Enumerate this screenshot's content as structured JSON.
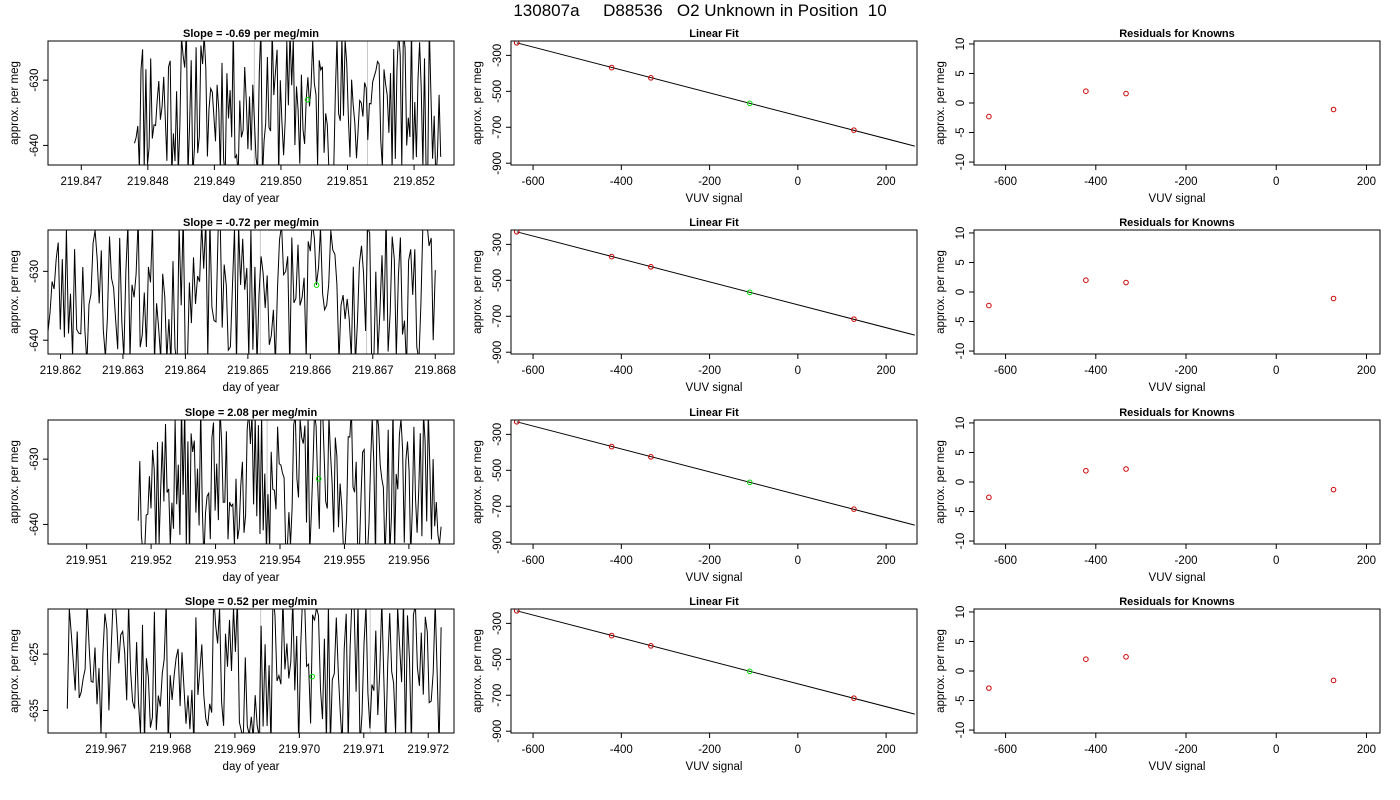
{
  "title": "130807a     D88536   O2 Unknown in Position  10",
  "chart_data": [
    {
      "type": "line",
      "title": "Slope =  -0.69  per meg/min",
      "xlabel": "day of year",
      "ylabel": "approx. per meg",
      "xlim": [
        219.8465,
        219.8526
      ],
      "ylim": [
        -643,
        -624
      ],
      "xticks": [
        "219.847",
        "219.848",
        "219.849",
        "219.850",
        "219.851",
        "219.852"
      ],
      "yticks": [
        -640,
        -630
      ],
      "x_start": 219.8478,
      "x_end": 219.8524,
      "seed": 11,
      "vlines": [
        219.8496,
        219.8513
      ],
      "marker": {
        "x": 219.8504,
        "y": -633
      }
    },
    {
      "type": "scatter",
      "title": "Linear Fit",
      "xlabel": "VUV signal",
      "ylabel": "approx. per meg",
      "xlim": [
        -650,
        270
      ],
      "ylim": [
        -910,
        -220
      ],
      "xticks": [
        -600,
        -400,
        -200,
        0,
        200
      ],
      "yticks": [
        -300,
        -500,
        -700,
        -900
      ],
      "points": [
        {
          "x": -637,
          "y": -230,
          "c": "red"
        },
        {
          "x": -422,
          "y": -368,
          "c": "red"
        },
        {
          "x": -333,
          "y": -425,
          "c": "red"
        },
        {
          "x": -109,
          "y": -567,
          "c": "green"
        },
        {
          "x": 127,
          "y": -716,
          "c": "red"
        }
      ],
      "fit": {
        "x": [
          -637,
          265
        ],
        "y": [
          -230,
          -805
        ]
      }
    },
    {
      "type": "scatter",
      "title": "Residuals for Knowns",
      "xlabel": "VUV signal",
      "ylabel": "approx. per meg",
      "xlim": [
        -670,
        230
      ],
      "ylim": [
        -10.5,
        10.5
      ],
      "xticks": [
        -600,
        -400,
        -200,
        0,
        200
      ],
      "yticks": [
        10,
        5,
        0,
        -5,
        -10
      ],
      "points": [
        {
          "x": -637,
          "y": -2.3,
          "c": "red"
        },
        {
          "x": -422,
          "y": 2.0,
          "c": "red"
        },
        {
          "x": -333,
          "y": 1.6,
          "c": "red"
        },
        {
          "x": 127,
          "y": -1.1,
          "c": "red"
        }
      ]
    },
    {
      "type": "line",
      "title": "Slope =  -0.72  per meg/min",
      "xlabel": "day of year",
      "ylabel": "approx. per meg",
      "xlim": [
        219.8618,
        219.8683
      ],
      "ylim": [
        -642,
        -624
      ],
      "xticks": [
        "219.862",
        "219.863",
        "219.864",
        "219.865",
        "219.866",
        "219.867",
        "219.868"
      ],
      "yticks": [
        -640,
        -630
      ],
      "x_start": 219.8618,
      "x_end": 219.868,
      "seed": 23,
      "vlines": [
        219.8652,
        219.8669
      ],
      "marker": {
        "x": 219.8661,
        "y": -632
      }
    },
    {
      "type": "scatter",
      "title": "Linear Fit",
      "xlabel": "VUV signal",
      "ylabel": "approx. per meg",
      "xlim": [
        -650,
        270
      ],
      "ylim": [
        -910,
        -220
      ],
      "xticks": [
        -600,
        -400,
        -200,
        0,
        200
      ],
      "yticks": [
        -300,
        -500,
        -700,
        -900
      ],
      "points": [
        {
          "x": -637,
          "y": -230,
          "c": "red"
        },
        {
          "x": -422,
          "y": -368,
          "c": "red"
        },
        {
          "x": -333,
          "y": -425,
          "c": "red"
        },
        {
          "x": -109,
          "y": -567,
          "c": "green"
        },
        {
          "x": 127,
          "y": -716,
          "c": "red"
        }
      ],
      "fit": {
        "x": [
          -637,
          265
        ],
        "y": [
          -230,
          -805
        ]
      }
    },
    {
      "type": "scatter",
      "title": "Residuals for Knowns",
      "xlabel": "VUV signal",
      "ylabel": "approx. per meg",
      "xlim": [
        -670,
        230
      ],
      "ylim": [
        -10.5,
        10.5
      ],
      "xticks": [
        -600,
        -400,
        -200,
        0,
        200
      ],
      "yticks": [
        10,
        5,
        0,
        -5,
        -10
      ],
      "points": [
        {
          "x": -637,
          "y": -2.3,
          "c": "red"
        },
        {
          "x": -422,
          "y": 2.0,
          "c": "red"
        },
        {
          "x": -333,
          "y": 1.6,
          "c": "red"
        },
        {
          "x": 127,
          "y": -1.1,
          "c": "red"
        }
      ]
    },
    {
      "type": "line",
      "title": "Slope =  2.08  per meg/min",
      "xlabel": "day of year",
      "ylabel": "approx. per meg",
      "xlim": [
        219.9504,
        219.9567
      ],
      "ylim": [
        -643,
        -624
      ],
      "xticks": [
        "219.951",
        "219.952",
        "219.953",
        "219.954",
        "219.955",
        "219.956"
      ],
      "yticks": [
        -640,
        -630
      ],
      "x_start": 219.9518,
      "x_end": 219.9565,
      "seed": 37,
      "vlines": [
        219.9538,
        219.9555
      ],
      "marker": {
        "x": 219.9546,
        "y": -633
      }
    },
    {
      "type": "scatter",
      "title": "Linear Fit",
      "xlabel": "VUV signal",
      "ylabel": "approx. per meg",
      "xlim": [
        -650,
        270
      ],
      "ylim": [
        -910,
        -220
      ],
      "xticks": [
        -600,
        -400,
        -200,
        0,
        200
      ],
      "yticks": [
        -300,
        -500,
        -700,
        -900
      ],
      "points": [
        {
          "x": -637,
          "y": -230,
          "c": "red"
        },
        {
          "x": -422,
          "y": -368,
          "c": "red"
        },
        {
          "x": -333,
          "y": -425,
          "c": "red"
        },
        {
          "x": -109,
          "y": -567,
          "c": "green"
        },
        {
          "x": 127,
          "y": -716,
          "c": "red"
        }
      ],
      "fit": {
        "x": [
          -637,
          265
        ],
        "y": [
          -230,
          -805
        ]
      }
    },
    {
      "type": "scatter",
      "title": "Residuals for Knowns",
      "xlabel": "VUV signal",
      "ylabel": "approx. per meg",
      "xlim": [
        -670,
        230
      ],
      "ylim": [
        -10.5,
        10.5
      ],
      "xticks": [
        -600,
        -400,
        -200,
        0,
        200
      ],
      "yticks": [
        10,
        5,
        0,
        -5,
        -10
      ],
      "points": [
        {
          "x": -637,
          "y": -2.6,
          "c": "red"
        },
        {
          "x": -422,
          "y": 1.9,
          "c": "red"
        },
        {
          "x": -333,
          "y": 2.2,
          "c": "red"
        },
        {
          "x": 127,
          "y": -1.3,
          "c": "red"
        }
      ]
    },
    {
      "type": "line",
      "title": "Slope =  0.52  per meg/min",
      "xlabel": "day of year",
      "ylabel": "approx. per meg",
      "xlim": [
        219.9661,
        219.9724
      ],
      "ylim": [
        -639,
        -617
      ],
      "xticks": [
        "219.967",
        "219.968",
        "219.969",
        "219.970",
        "219.971",
        "219.972"
      ],
      "yticks": [
        -635,
        -625
      ],
      "x_start": 219.9664,
      "x_end": 219.9722,
      "seed": 51,
      "vlines": [
        219.9694,
        219.9711
      ],
      "marker": {
        "x": 219.9702,
        "y": -629
      }
    },
    {
      "type": "scatter",
      "title": "Linear Fit",
      "xlabel": "VUV signal",
      "ylabel": "approx. per meg",
      "xlim": [
        -650,
        270
      ],
      "ylim": [
        -910,
        -220
      ],
      "xticks": [
        -600,
        -400,
        -200,
        0,
        200
      ],
      "yticks": [
        -300,
        -500,
        -700,
        -900
      ],
      "points": [
        {
          "x": -637,
          "y": -230,
          "c": "red"
        },
        {
          "x": -422,
          "y": -368,
          "c": "red"
        },
        {
          "x": -333,
          "y": -425,
          "c": "red"
        },
        {
          "x": -109,
          "y": -567,
          "c": "green"
        },
        {
          "x": 127,
          "y": -716,
          "c": "red"
        }
      ],
      "fit": {
        "x": [
          -637,
          265
        ],
        "y": [
          -230,
          -805
        ]
      }
    },
    {
      "type": "scatter",
      "title": "Residuals for Knowns",
      "xlabel": "VUV signal",
      "ylabel": "approx. per meg",
      "xlim": [
        -670,
        230
      ],
      "ylim": [
        -10.5,
        10.5
      ],
      "xticks": [
        -600,
        -400,
        -200,
        0,
        200
      ],
      "yticks": [
        10,
        5,
        0,
        -5,
        -10
      ],
      "points": [
        {
          "x": -637,
          "y": -2.9,
          "c": "red"
        },
        {
          "x": -422,
          "y": 2.0,
          "c": "red"
        },
        {
          "x": -333,
          "y": 2.4,
          "c": "red"
        },
        {
          "x": 127,
          "y": -1.6,
          "c": "red"
        }
      ]
    }
  ]
}
